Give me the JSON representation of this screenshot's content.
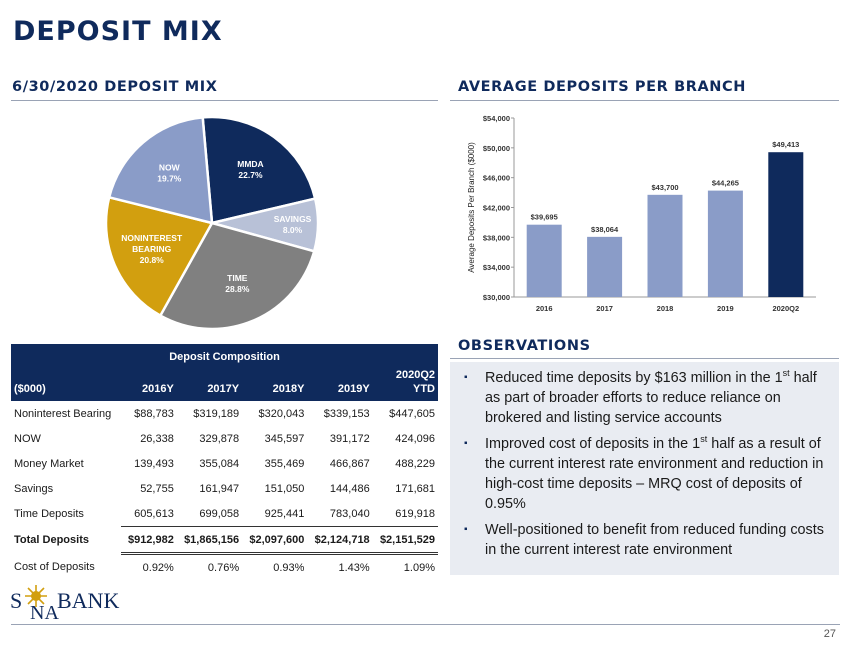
{
  "page": {
    "title": "DEPOSIT MIX",
    "page_number": "27"
  },
  "pie_section": {
    "title": "6/30/2020 DEPOSIT MIX"
  },
  "bar_section": {
    "title": "AVERAGE DEPOSITS PER BRANCH"
  },
  "observations": {
    "title": "OBSERVATIONS",
    "items": [
      {
        "before": "Reduced time deposits by $163 million in the 1",
        "sup": "st",
        "after": " half as part of broader efforts to reduce reliance on brokered and listing service accounts"
      },
      {
        "before": "Improved cost of deposits in the 1",
        "sup": "st",
        "after": " half as a result of the current interest rate environment and reduction in high-cost time deposits – MRQ cost of deposits of 0.95%"
      },
      {
        "before": "Well-positioned to benefit from reduced funding costs in the current interest rate environment",
        "sup": "",
        "after": ""
      }
    ]
  },
  "table": {
    "caption": "Deposit Composition",
    "unit_label": "($000)",
    "columns": [
      "2016Y",
      "2017Y",
      "2018Y",
      "2019Y",
      "2020Q2"
    ],
    "last_col_sub": "YTD",
    "rows": [
      {
        "label": "Noninterest Bearing",
        "values": [
          "$88,783",
          "$319,189",
          "$320,043",
          "$339,153",
          "$447,605"
        ]
      },
      {
        "label": "NOW",
        "values": [
          "26,338",
          "329,878",
          "345,597",
          "391,172",
          "424,096"
        ]
      },
      {
        "label": "Money Market",
        "values": [
          "139,493",
          "355,084",
          "355,469",
          "466,867",
          "488,229"
        ]
      },
      {
        "label": "Savings",
        "values": [
          "52,755",
          "161,947",
          "151,050",
          "144,486",
          "171,681"
        ]
      },
      {
        "label": "Time Deposits",
        "values": [
          "605,613",
          "699,058",
          "925,441",
          "783,040",
          "619,918"
        ]
      },
      {
        "label": "Total Deposits",
        "values": [
          "$912,982",
          "$1,865,156",
          "$2,097,600",
          "$2,124,718",
          "$2,151,529"
        ]
      },
      {
        "label": "Cost of Deposits",
        "values": [
          "0.92%",
          "0.76%",
          "0.93%",
          "1.43%",
          "1.09%"
        ]
      }
    ]
  },
  "logo": {
    "s": "S",
    "na": "NA",
    "bank": "BANK"
  },
  "chart_data": [
    {
      "type": "pie",
      "title": "6/30/2020 DEPOSIT MIX",
      "slices": [
        {
          "label": "MMDA",
          "value": 22.7,
          "value_label": "22.7%",
          "color": "#0f2a5c"
        },
        {
          "label": "SAVINGS",
          "value": 8.0,
          "value_label": "8.0%",
          "color": "#b8c1d7"
        },
        {
          "label": "TIME",
          "value": 28.8,
          "value_label": "28.8%",
          "color": "#808080"
        },
        {
          "label": "NONINTEREST BEARING",
          "label_lines": [
            "NONINTEREST",
            "BEARING"
          ],
          "value": 20.8,
          "value_label": "20.8%",
          "color": "#d29f0f"
        },
        {
          "label": "NOW",
          "value": 19.7,
          "value_label": "19.7%",
          "color": "#8a9cc8"
        }
      ]
    },
    {
      "type": "bar",
      "title": "AVERAGE DEPOSITS PER BRANCH",
      "categories": [
        "2016",
        "2017",
        "2018",
        "2019",
        "2020Q2"
      ],
      "values": [
        39695,
        38064,
        43700,
        44265,
        49413
      ],
      "value_labels": [
        "$39,695",
        "$38,064",
        "$43,700",
        "$44,265",
        "$49,413"
      ],
      "colors": [
        "#8a9cc8",
        "#8a9cc8",
        "#8a9cc8",
        "#8a9cc8",
        "#0f2a5c"
      ],
      "ylabel": "Average Deposits Per Branch ($000)",
      "ylim": [
        30000,
        54000
      ],
      "yticks": [
        30000,
        34000,
        38000,
        42000,
        46000,
        50000,
        54000
      ],
      "ytick_labels": [
        "$30,000",
        "$34,000",
        "$38,000",
        "$42,000",
        "$46,000",
        "$50,000",
        "$54,000"
      ],
      "grid": false
    }
  ]
}
